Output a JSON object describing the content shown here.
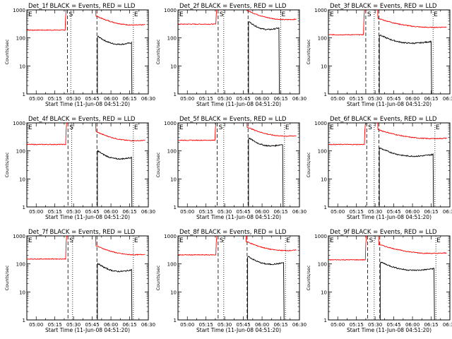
{
  "chart_data": {
    "type": "line",
    "scale": "log",
    "ylim": [
      1,
      1000
    ],
    "y_tick_labels": [
      "1",
      "10",
      "100",
      "1000"
    ],
    "x_tick_labels": [
      "05:00",
      "05:15",
      "05:30",
      "05:45",
      "06:00",
      "06:15",
      "06:30"
    ],
    "xlabel": "Start Time (11-Jun-08 04:51:20)",
    "ylabel": "Counts/sec",
    "marker_labels": {
      "E": "E",
      "S": "S"
    },
    "series_colors": {
      "events": "#000000",
      "lld": "#ff0000"
    },
    "panels": [
      {
        "title": "Det_1f BLACK = Events, RED = LLD",
        "lld_base": 230,
        "ev_base": 55,
        "dash": [
          4.35,
          7.5
        ],
        "dot": [
          4.7,
          11.4
        ],
        "lld_peak": 190
      },
      {
        "title": "Det_2f BLACK = Events, RED = LLD",
        "lld_base": 360,
        "ev_base": 185,
        "dash": [
          4.3,
          7.5
        ],
        "dot": [
          4.9,
          11.0
        ],
        "lld_peak": 310
      },
      {
        "title": "Det_3f BLACK = Events, RED = LLD",
        "lld_base": 190,
        "ev_base": 60,
        "dash": [
          4.0,
          5.4
        ],
        "dot": [
          4.9,
          11.2
        ],
        "lld_peak": 130
      },
      {
        "title": "Det_4f BLACK = Events, RED = LLD",
        "lld_base": 185,
        "ev_base": 48,
        "dash": [
          4.4,
          7.5
        ],
        "dot": [
          4.8,
          11.4
        ],
        "lld_peak": 170
      },
      {
        "title": "Det_5f BLACK = Events, RED = LLD",
        "lld_base": 270,
        "ev_base": 140,
        "dash": [
          4.2,
          7.5
        ],
        "dot": [
          4.9,
          11.4
        ],
        "lld_peak": 240
      },
      {
        "title": "Det_6f BLACK = Events, RED = LLD",
        "lld_base": 220,
        "ev_base": 60,
        "dash": [
          4.1,
          5.4
        ],
        "dot": [
          4.9,
          11.4
        ],
        "lld_peak": 170
      },
      {
        "title": "Det_7f BLACK = Events, RED = LLD",
        "lld_base": 170,
        "ev_base": 50,
        "dash": [
          4.4,
          7.5
        ],
        "dot": [
          4.9,
          11.4
        ],
        "lld_peak": 150
      },
      {
        "title": "Det_8f BLACK = Events, RED = LLD",
        "lld_base": 240,
        "ev_base": 90,
        "dash": [
          4.3,
          7.4
        ],
        "dot": [
          4.9,
          11.5
        ],
        "lld_peak": 210
      },
      {
        "title": "Det_9f BLACK = Events, RED = LLD",
        "lld_base": 190,
        "ev_base": 55,
        "dash": [
          4.2,
          5.5
        ],
        "dot": [
          4.9,
          11.5
        ],
        "lld_peak": 140
      }
    ]
  }
}
